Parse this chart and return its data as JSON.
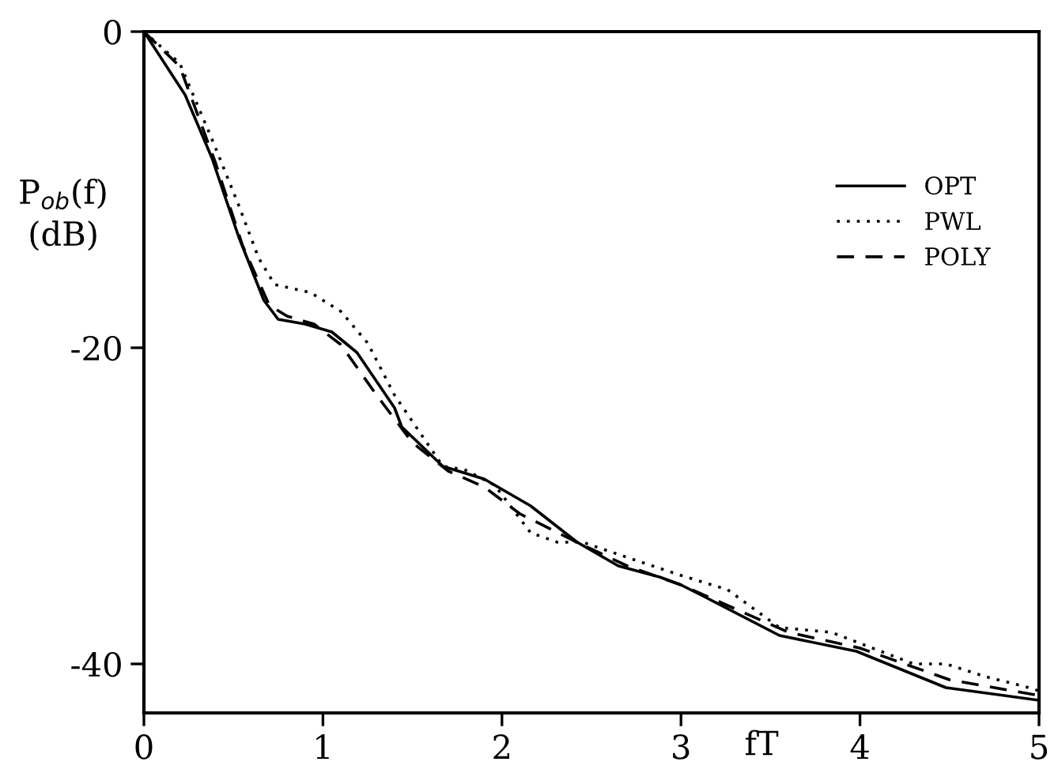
{
  "chart_data": {
    "type": "line",
    "xlabel": "fT",
    "ylabel": "P$_{ob}$(f)\n(dB)",
    "xlim": [
      0,
      5
    ],
    "ylim": [
      -43.1,
      0
    ],
    "xticks": [
      0,
      1,
      2,
      3,
      4,
      5
    ],
    "yticks": [
      0,
      {
        "value": -20,
        "label": "-20"
      },
      {
        "value": -40,
        "label": "-40"
      }
    ],
    "grid": false,
    "legend": "top right",
    "series": [
      {
        "name": "OPT",
        "color": "#000000",
        "line_style": "solid",
        "x": [
          0,
          0.23,
          0.38,
          0.53,
          0.67,
          0.75,
          0.9,
          1.05,
          1.19,
          1.4,
          1.44,
          1.67,
          1.9,
          2.16,
          2.42,
          2.65,
          2.88,
          3.0,
          3.14,
          3.55,
          3.98,
          4.48,
          5
        ],
        "values": [
          0,
          -4,
          -8,
          -13,
          -17,
          -18.2,
          -18.5,
          -19,
          -20.3,
          -23.8,
          -25,
          -27.5,
          -28.3,
          -30,
          -32.3,
          -33.8,
          -34.5,
          -35,
          -35.8,
          -38.2,
          -39.2,
          -41.5,
          -42.3
        ]
      },
      {
        "name": "PWL",
        "color": "#000000",
        "line_style": "dotted",
        "x": [
          0,
          0.2,
          0.38,
          0.53,
          0.64,
          0.73,
          0.93,
          1.1,
          1.25,
          1.4,
          1.67,
          1.79,
          1.96,
          2.16,
          2.31,
          2.45,
          2.71,
          3.0,
          3.26,
          3.55,
          3.84,
          4.3,
          4.48,
          4.7,
          4.91,
          5
        ],
        "values": [
          0,
          -2,
          -6.8,
          -11,
          -14.3,
          -16,
          -16.5,
          -17.7,
          -19.7,
          -23,
          -27.5,
          -27.7,
          -28.7,
          -31.7,
          -32.3,
          -32.3,
          -33.3,
          -34.4,
          -35.3,
          -37.7,
          -38,
          -40,
          -40,
          -40.8,
          -41.4,
          -41.7
        ]
      },
      {
        "name": "POLY",
        "color": "#000000",
        "line_style": "dashed",
        "x": [
          0,
          0.2,
          0.4,
          0.55,
          0.7,
          0.8,
          0.95,
          1.1,
          1.3,
          1.5,
          1.7,
          1.9,
          2.1,
          2.4,
          2.7,
          3.0,
          3.3,
          3.6,
          4.0,
          4.5,
          5
        ],
        "values": [
          0,
          -2.2,
          -8.3,
          -13.5,
          -17.3,
          -18,
          -18.5,
          -19.8,
          -23,
          -26,
          -27.8,
          -28.8,
          -30.5,
          -32.2,
          -33.8,
          -35,
          -36.5,
          -38,
          -39,
          -41,
          -42
        ]
      }
    ]
  }
}
